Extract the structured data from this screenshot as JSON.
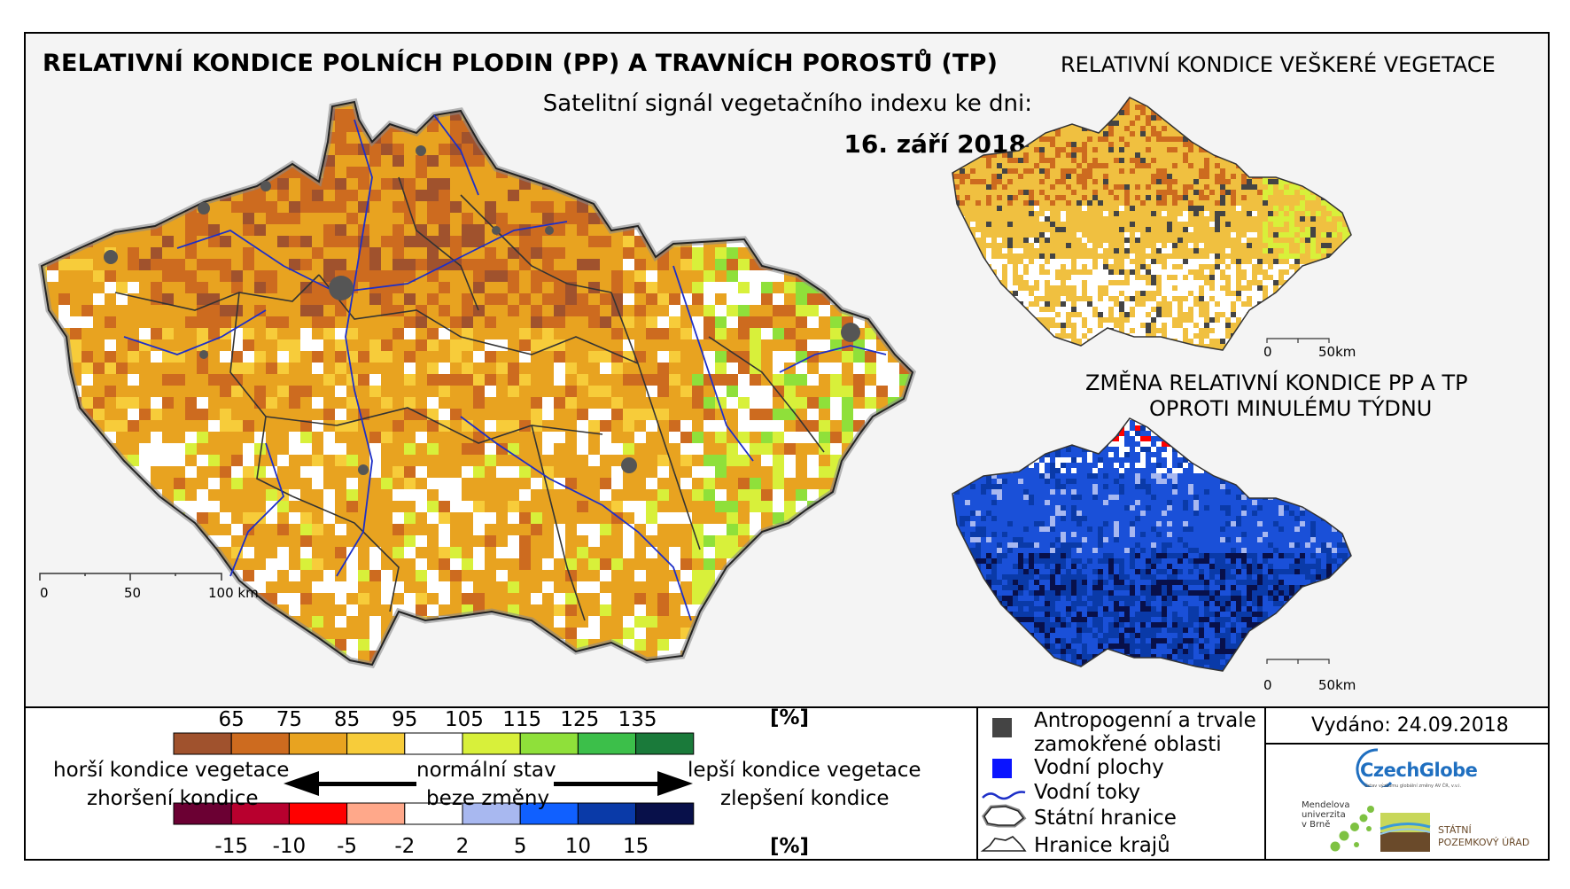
{
  "main_title": "RELATIVNÍ KONDICE POLNÍCH PLODIN (PP) A TRAVNÍCH POROSTŮ (TP)",
  "subtitle": "Satelitní signál vegetačního indexu ke dni:",
  "date": "16. září 2018",
  "inset_top_title": "RELATIVNÍ KONDICE VEŠKERÉ VEGETACE",
  "inset_bottom_title_line1": "ZMĚNA RELATIVNÍ KONDICE PP A TP",
  "inset_bottom_title_line2": "OPROTI MINULÉMU TÝDNU",
  "scale_main": [
    "0",
    "50",
    "100 km"
  ],
  "scale_inset": [
    "0",
    "50km"
  ],
  "legend_condition": {
    "ticks": [
      "65",
      "75",
      "85",
      "95",
      "105",
      "115",
      "125",
      "135"
    ],
    "unit": "[%]",
    "colors": [
      "#a0522d",
      "#cd6b1f",
      "#e8a320",
      "#f7cc3a",
      "#ffffff",
      "#d8f03a",
      "#8fe03a",
      "#3cbf4a",
      "#1a7a3a"
    ]
  },
  "legend_change": {
    "ticks": [
      "-15",
      "-10",
      "-5",
      "-2",
      "2",
      "5",
      "10",
      "15"
    ],
    "unit": "[%]",
    "colors": [
      "#6b0033",
      "#b8002e",
      "#ff0000",
      "#ffa88a",
      "#ffffff",
      "#a8b8f0",
      "#1060ff",
      "#0a3aa8",
      "#08104a"
    ]
  },
  "arrow_labels": {
    "left_top": "horší kondice vegetace",
    "left_bottom": "zhoršení kondice",
    "center_top": "normální stav",
    "center_bottom": "beze změny",
    "right_top": "lepší kondice vegetace",
    "right_bottom": "zlepšení kondice"
  },
  "map_legend": [
    {
      "label": "Antropogenní a trvale zamokřené oblasti",
      "line1": "Antropogenní a trvale",
      "line2": "zamokřené oblasti",
      "icon": "gray-square-icon"
    },
    {
      "label": "Vodní plochy",
      "icon": "blue-square-icon"
    },
    {
      "label": "Vodní toky",
      "icon": "river-line-icon"
    },
    {
      "label": "Státní hranice",
      "icon": "state-border-icon"
    },
    {
      "label": "Hranice krajů",
      "icon": "region-border-icon"
    }
  ],
  "issued": "Vydáno: 24.09.2018",
  "logos": {
    "czechglobe": "CzechGlobe",
    "czechglobe_sub": "Ústav výzkumu globální změny AV ČR, v.v.i.",
    "mendel_line1": "Mendelova",
    "mendel_line2": "univerzita",
    "mendel_line3": "v Brně",
    "spu_line1": "STÁTNÍ",
    "spu_line2": "POZEMKOVÝ ÚŘAD"
  }
}
